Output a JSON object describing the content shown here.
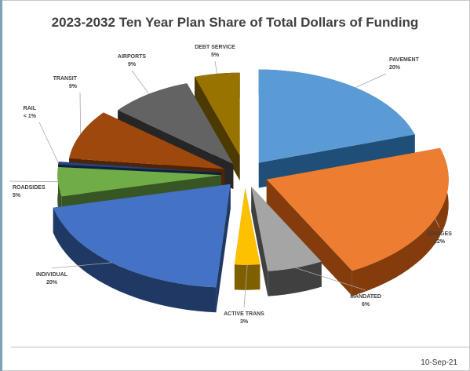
{
  "chart_data": {
    "type": "pie",
    "title": "2023-2032 Ten Year Plan Share of Total Dollars of Funding",
    "slices": [
      {
        "label": "PAVEMENT",
        "pct_label": "20%",
        "value": 20,
        "color": "#5b9bd5",
        "side": "#1f4e79"
      },
      {
        "label": "BRIDGES",
        "pct_label": "22%",
        "value": 22,
        "color": "#ed7d31",
        "side": "#843c0c"
      },
      {
        "label": "MANDATED",
        "pct_label": "6%",
        "value": 6,
        "color": "#a5a5a5",
        "side": "#404040"
      },
      {
        "label": "ACTIVE TRANS",
        "pct_label": "3%",
        "value": 3,
        "color": "#ffc000",
        "side": "#7f6000"
      },
      {
        "label": "INDIVIDUAL",
        "pct_label": "20%",
        "value": 20,
        "color": "#4472c4",
        "side": "#203864"
      },
      {
        "label": "ROADSIDES",
        "pct_label": "5%",
        "value": 5,
        "color": "#70ad47",
        "side": "#375623"
      },
      {
        "label": "RAIL",
        "pct_label": "< 1%",
        "value": 0.5,
        "color": "#264478",
        "side": "#0f1f3d"
      },
      {
        "label": "TRANSIT",
        "pct_label": "9%",
        "value": 9,
        "color": "#9e480e",
        "side": "#4f2407"
      },
      {
        "label": "AIRPORTS",
        "pct_label": "9%",
        "value": 9,
        "color": "#636363",
        "side": "#262626"
      },
      {
        "label": "DEBT SERVICE",
        "pct_label": "5%",
        "value": 5,
        "color": "#997300",
        "side": "#4d3a00"
      }
    ],
    "legend": "none"
  },
  "footer": {
    "date": "10-Sep-21"
  }
}
